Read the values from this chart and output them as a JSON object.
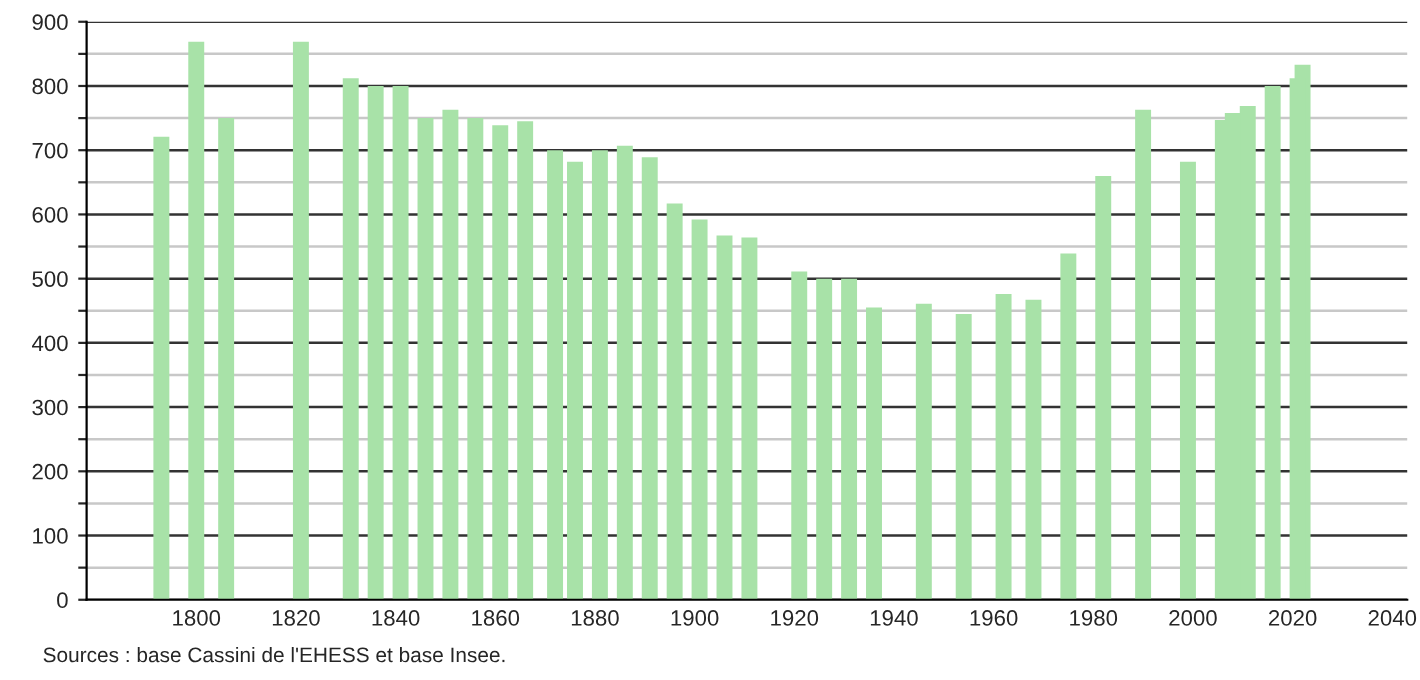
{
  "chart_data": {
    "type": "bar",
    "x": [
      1793,
      1800,
      1806,
      1821,
      1831,
      1836,
      1841,
      1846,
      1851,
      1856,
      1861,
      1866,
      1872,
      1876,
      1881,
      1886,
      1891,
      1896,
      1901,
      1906,
      1911,
      1921,
      1926,
      1931,
      1936,
      1946,
      1954,
      1962,
      1968,
      1975,
      1982,
      1990,
      1999,
      2006,
      2008,
      2011,
      2016,
      2021,
      2022
    ],
    "values": [
      721,
      869,
      750,
      869,
      812,
      800,
      800,
      750,
      763,
      750,
      739,
      745,
      700,
      682,
      700,
      707,
      689,
      617,
      592,
      567,
      564,
      511,
      500,
      500,
      455,
      461,
      445,
      476,
      467,
      539,
      660,
      763,
      682,
      747,
      758,
      769,
      800,
      812,
      833
    ],
    "color": "#a8e2a8",
    "xlim": [
      1778,
      2043
    ],
    "xticks": [
      1800,
      1820,
      1840,
      1860,
      1880,
      1900,
      1920,
      1940,
      1960,
      1980,
      2000,
      2020,
      2040
    ],
    "ylim": [
      0,
      900
    ],
    "yticks": [
      0,
      {
        "value": 50,
        "label": null
      },
      100,
      {
        "value": 150,
        "label": null
      },
      200,
      {
        "value": 250,
        "label": null
      },
      300,
      {
        "value": 350,
        "label": null
      },
      400,
      {
        "value": 450,
        "label": null
      },
      500,
      {
        "value": 550,
        "label": null
      },
      600,
      {
        "value": 650,
        "label": null
      },
      700,
      {
        "value": 750,
        "label": null
      },
      800,
      {
        "value": 850,
        "label": null
      },
      900
    ],
    "grid": "y",
    "annotations": [
      "Sources : base Cassini de l'EHESS et base Insee."
    ]
  }
}
